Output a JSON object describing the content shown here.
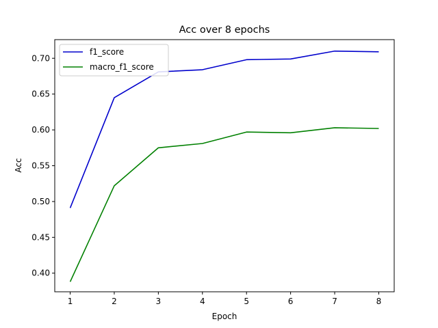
{
  "chart_data": {
    "type": "line",
    "title": "Acc over 8 epochs",
    "xlabel": "Epoch",
    "ylabel": "Acc",
    "x": [
      1,
      2,
      3,
      4,
      5,
      6,
      7,
      8
    ],
    "xticks": [
      1,
      2,
      3,
      4,
      5,
      6,
      7,
      8
    ],
    "xlim": [
      0.65,
      8.35
    ],
    "ylim": [
      0.374,
      0.726
    ],
    "yticks": [
      0.4,
      0.45,
      0.5,
      0.55,
      0.6,
      0.65,
      0.7
    ],
    "ytick_labels": [
      "0.40",
      "0.45",
      "0.50",
      "0.55",
      "0.60",
      "0.65",
      "0.70"
    ],
    "grid": false,
    "legend_position": "top-left",
    "series": [
      {
        "name": "f1_score",
        "color": "#0000cc",
        "values": [
          0.491,
          0.645,
          0.681,
          0.684,
          0.698,
          0.699,
          0.71,
          0.709
        ]
      },
      {
        "name": "macro_f1_score",
        "color": "#008000",
        "values": [
          0.388,
          0.522,
          0.575,
          0.581,
          0.597,
          0.596,
          0.603,
          0.602
        ]
      }
    ]
  }
}
